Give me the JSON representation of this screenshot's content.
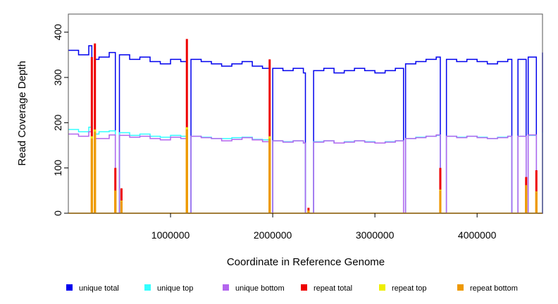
{
  "chart_data": {
    "type": "line",
    "xlabel": "Coordinate in Reference Genome",
    "ylabel": "Read Coverage Depth",
    "xlim": [
      0,
      4640000
    ],
    "ylim": [
      0,
      440
    ],
    "x_ticks": [
      1000000,
      2000000,
      3000000,
      4000000
    ],
    "x_tick_labels": [
      "1000000",
      "2000000",
      "3000000",
      "4000000"
    ],
    "y_ticks": [
      0,
      100,
      200,
      300,
      400
    ],
    "y_tick_labels": [
      "0",
      "100",
      "200",
      "300",
      "400"
    ],
    "grid": false,
    "legend_position": "bottom",
    "colors": {
      "unique_total": "#0000ee",
      "unique_top": "#33ffff",
      "unique_bottom": "#b366ee",
      "repeat_total": "#ee0000",
      "repeat_top": "#eeee00",
      "repeat_bottom": "#ee9900"
    },
    "series": [
      {
        "name": "unique total",
        "color": "#0000ee",
        "x": [
          0,
          100000,
          200000,
          230000,
          260000,
          300000,
          400000,
          460000,
          500000,
          600000,
          700000,
          800000,
          900000,
          1000000,
          1100000,
          1160000,
          1200000,
          1300000,
          1400000,
          1500000,
          1600000,
          1700000,
          1800000,
          1900000,
          1970000,
          2000000,
          2100000,
          2200000,
          2300000,
          2320000,
          2400000,
          2500000,
          2600000,
          2700000,
          2800000,
          2900000,
          3000000,
          3100000,
          3200000,
          3280000,
          3300000,
          3400000,
          3500000,
          3600000,
          3640000,
          3700000,
          3800000,
          3900000,
          4000000,
          4100000,
          4200000,
          4300000,
          4340000,
          4400000,
          4480000,
          4500000,
          4580000,
          4640000
        ],
        "y": [
          360,
          350,
          370,
          0,
          340,
          345,
          355,
          0,
          350,
          340,
          345,
          335,
          330,
          340,
          335,
          0,
          340,
          335,
          330,
          325,
          330,
          335,
          325,
          320,
          0,
          320,
          315,
          320,
          310,
          0,
          315,
          320,
          310,
          315,
          320,
          315,
          310,
          315,
          320,
          0,
          330,
          335,
          340,
          345,
          0,
          340,
          335,
          340,
          335,
          330,
          335,
          340,
          0,
          340,
          0,
          345,
          0,
          355
        ]
      },
      {
        "name": "unique top",
        "color": "#33ffff",
        "x": [
          0,
          100000,
          200000,
          230000,
          260000,
          300000,
          400000,
          460000,
          500000,
          600000,
          700000,
          800000,
          900000,
          1000000,
          1100000,
          1160000,
          1200000,
          1300000,
          1400000,
          1500000,
          1600000,
          1700000,
          1800000,
          1900000,
          1970000,
          2000000,
          2100000,
          2200000,
          2300000,
          2320000,
          2400000,
          2500000,
          2600000,
          2700000,
          2800000,
          2900000,
          3000000,
          3100000,
          3200000,
          3280000,
          3300000,
          3400000,
          3500000,
          3600000,
          3640000,
          3700000,
          3800000,
          3900000,
          4000000,
          4100000,
          4200000,
          4300000,
          4340000,
          4400000,
          4480000,
          4500000,
          4580000,
          4640000
        ],
        "y": [
          185,
          180,
          190,
          0,
          175,
          180,
          182,
          0,
          178,
          172,
          175,
          170,
          168,
          172,
          170,
          0,
          170,
          168,
          165,
          165,
          167,
          168,
          163,
          162,
          0,
          160,
          158,
          160,
          155,
          0,
          158,
          160,
          155,
          158,
          160,
          158,
          155,
          158,
          160,
          0,
          165,
          168,
          170,
          172,
          0,
          170,
          168,
          170,
          168,
          165,
          168,
          170,
          0,
          170,
          0,
          172,
          0,
          178
        ]
      },
      {
        "name": "unique bottom",
        "color": "#b366ee",
        "x": [
          0,
          100000,
          200000,
          230000,
          260000,
          300000,
          400000,
          460000,
          500000,
          600000,
          700000,
          800000,
          900000,
          1000000,
          1100000,
          1160000,
          1200000,
          1300000,
          1400000,
          1500000,
          1600000,
          1700000,
          1800000,
          1900000,
          1970000,
          2000000,
          2100000,
          2200000,
          2300000,
          2320000,
          2400000,
          2500000,
          2600000,
          2700000,
          2800000,
          2900000,
          3000000,
          3100000,
          3200000,
          3280000,
          3300000,
          3400000,
          3500000,
          3600000,
          3640000,
          3700000,
          3800000,
          3900000,
          4000000,
          4100000,
          4200000,
          4300000,
          4340000,
          4400000,
          4480000,
          4500000,
          4580000,
          4640000
        ],
        "y": [
          175,
          170,
          180,
          0,
          165,
          165,
          173,
          0,
          172,
          168,
          170,
          165,
          162,
          168,
          165,
          0,
          170,
          167,
          165,
          160,
          163,
          167,
          162,
          158,
          0,
          160,
          157,
          160,
          155,
          0,
          157,
          160,
          155,
          157,
          160,
          157,
          155,
          157,
          160,
          0,
          165,
          167,
          170,
          173,
          0,
          170,
          167,
          170,
          167,
          165,
          167,
          170,
          0,
          170,
          0,
          173,
          0,
          177
        ]
      },
      {
        "name": "repeat total",
        "color": "#ee0000",
        "x": [
          230000,
          260000,
          460000,
          520000,
          1160000,
          1970000,
          2350000,
          3640000,
          4480000,
          4580000
        ],
        "y": [
          345,
          375,
          100,
          55,
          385,
          340,
          12,
          100,
          80,
          95
        ]
      },
      {
        "name": "repeat top",
        "color": "#eeee00",
        "x": [
          230000,
          260000,
          460000,
          520000,
          1160000,
          1970000,
          2350000,
          3640000,
          4480000,
          4580000
        ],
        "y": [
          170,
          185,
          50,
          28,
          190,
          170,
          6,
          52,
          40,
          48
        ]
      },
      {
        "name": "repeat bottom",
        "color": "#ee9900",
        "x": [
          230000,
          260000,
          460000,
          520000,
          1160000,
          1970000,
          2350000,
          3640000,
          4480000,
          4580000
        ],
        "y": [
          165,
          180,
          50,
          27,
          185,
          165,
          6,
          50,
          62,
          47
        ]
      }
    ]
  },
  "legend": {
    "items": [
      {
        "label": "unique total",
        "color": "#0000ee"
      },
      {
        "label": "unique top",
        "color": "#33ffff"
      },
      {
        "label": "unique bottom",
        "color": "#b366ee"
      },
      {
        "label": "repeat total",
        "color": "#ee0000"
      },
      {
        "label": "repeat top",
        "color": "#eeee00"
      },
      {
        "label": "repeat bottom",
        "color": "#ee9900"
      }
    ]
  }
}
